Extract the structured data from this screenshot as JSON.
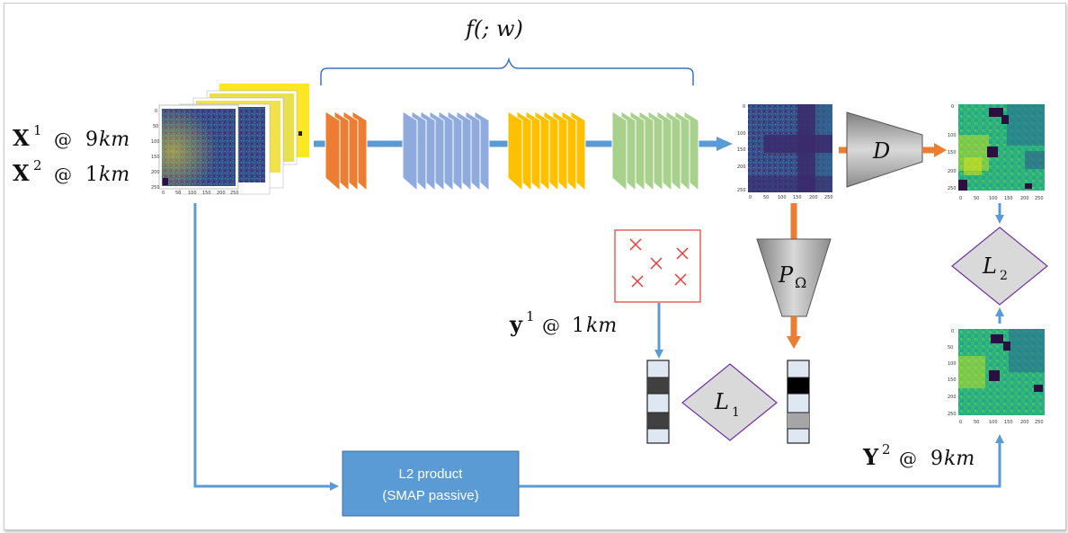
{
  "inputs": {
    "x1": {
      "sym": "X",
      "sup": "1",
      "at": "@",
      "res_num": "9",
      "res_unit": "km"
    },
    "x2": {
      "sym": "X",
      "sup": "2",
      "at": "@",
      "res_num": "1",
      "res_unit": "km"
    }
  },
  "network": {
    "label": "f(; w)",
    "block_colors": [
      "#ed7d31",
      "#8faadc",
      "#ffc000",
      "#a9d18e"
    ]
  },
  "observations": {
    "sym": "y",
    "sup": "1",
    "at": "@",
    "res_num": "1",
    "res_unit": "km"
  },
  "targets": {
    "sym": "Y",
    "sup": "2",
    "at": "@",
    "res_num": "9",
    "res_unit": "km"
  },
  "operators": {
    "projection": "P",
    "projection_sub": "Ω",
    "downsample": "D"
  },
  "losses": {
    "l1": "L",
    "l1_sub": "1",
    "l2": "L",
    "l2_sub": "2"
  },
  "product_box": {
    "line1": "L2 product",
    "line2": "(SMAP passive)"
  },
  "colors": {
    "arrow_blue": "#5b9bd5",
    "arrow_orange": "#ed7d31",
    "box_blue": "#5b9bd5",
    "marker_red": "#e53935"
  },
  "ticks": {
    "y": [
      "0",
      "50",
      "100",
      "150",
      "200",
      "250"
    ],
    "x": [
      "0",
      "50",
      "100",
      "150",
      "200",
      "250"
    ]
  },
  "icons": [
    "input-heatmap-stack",
    "cnn-layer-blocks",
    "sparse-observation-map",
    "loss-diamond",
    "projection-trapezoid",
    "downsample-trapezoid",
    "observation-vector"
  ]
}
